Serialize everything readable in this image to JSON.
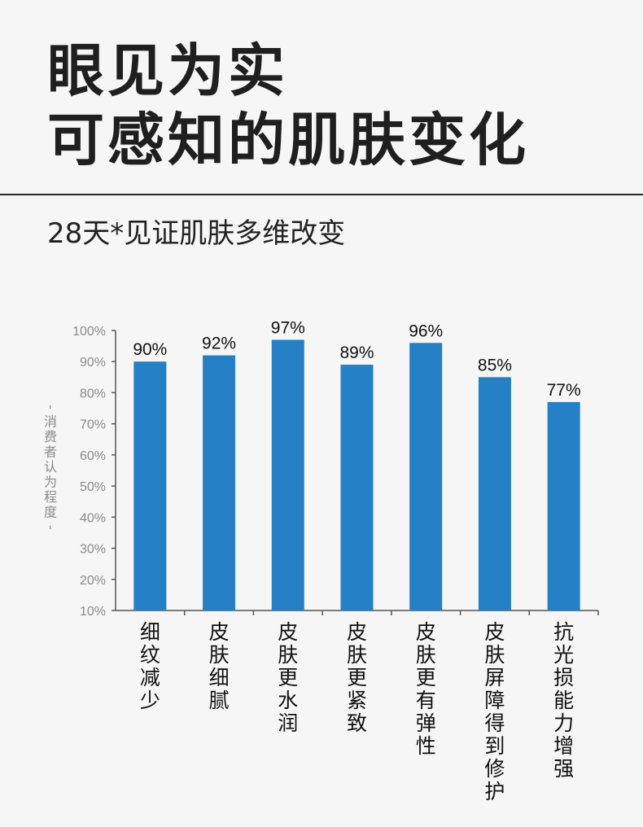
{
  "header": {
    "title_line1": "眼见为实",
    "title_line2": "可感知的肌肤变化",
    "subtitle": "28天*见证肌肤多维改变"
  },
  "chart_data": {
    "type": "bar",
    "categories": [
      "细纹减少",
      "皮肤细腻",
      "皮肤更水润",
      "皮肤更紧致",
      "皮肤更有弹性",
      "皮肤屏障得到修护",
      "抗光损能力增强"
    ],
    "values": [
      90,
      92,
      97,
      89,
      96,
      85,
      77
    ],
    "data_labels": [
      "90%",
      "92%",
      "97%",
      "89%",
      "96%",
      "85%",
      "77%"
    ],
    "ylabel": "-消费者认为程度-",
    "ylim": [
      10,
      100
    ],
    "yticks": [
      "100%",
      "90%",
      "80%",
      "70%",
      "60%",
      "50%",
      "40%",
      "30%",
      "20%",
      "10%"
    ],
    "bar_color": "#2580c5",
    "grid": false
  }
}
